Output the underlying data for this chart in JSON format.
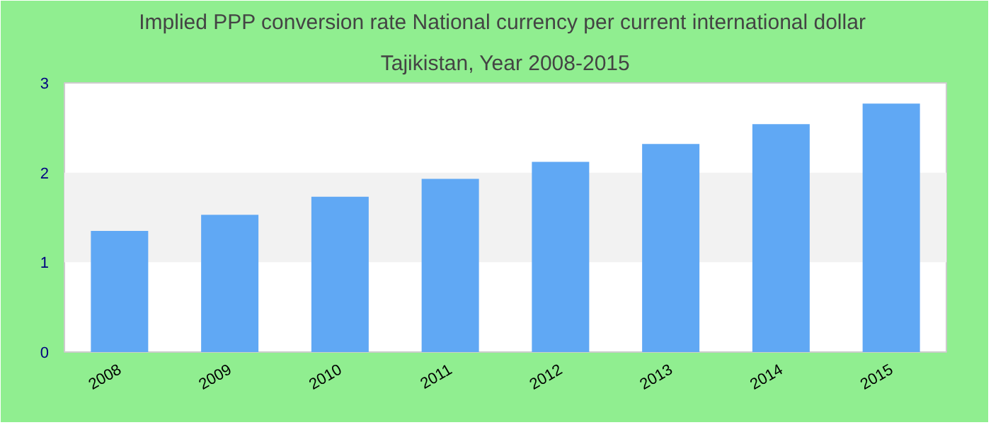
{
  "chart_data": {
    "type": "bar",
    "title": "Implied PPP conversion rate  National currency per current international dollar",
    "subtitle": "Tajikistan, Year 2008-2015",
    "categories": [
      "2008",
      "2009",
      "2010",
      "2011",
      "2012",
      "2013",
      "2014",
      "2015"
    ],
    "values": [
      1.35,
      1.53,
      1.73,
      1.93,
      2.12,
      2.32,
      2.54,
      2.77
    ],
    "color": "#60a8f4",
    "ylim": [
      0,
      3
    ],
    "yticks": [
      0,
      1,
      2,
      3
    ],
    "bands": [
      {
        "axis": "y",
        "from": 1,
        "to": 2,
        "color": "#f2f2f2"
      }
    ]
  }
}
